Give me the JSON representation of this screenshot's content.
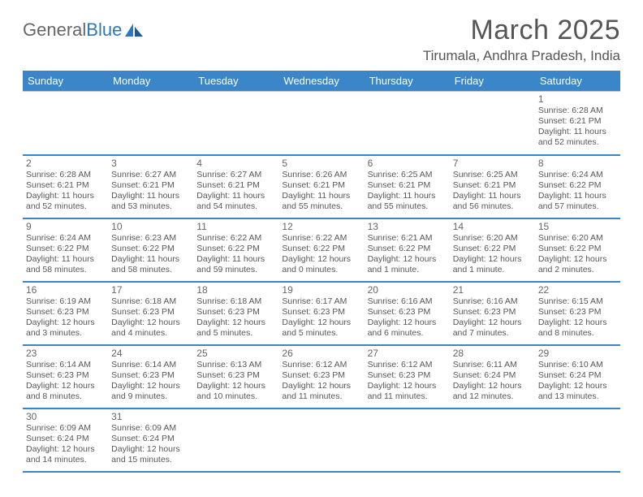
{
  "logo": {
    "text1": "General",
    "text2": "Blue"
  },
  "title": "March 2025",
  "location": "Tirumala, Andhra Pradesh, India",
  "colors": {
    "header_bg": "#3a86c8",
    "header_text": "#ffffff",
    "row_border": "#3a86c8",
    "cell_border": "#c9c9c9",
    "text": "#575757",
    "title_text": "#555555"
  },
  "weekdays": [
    "Sunday",
    "Monday",
    "Tuesday",
    "Wednesday",
    "Thursday",
    "Friday",
    "Saturday"
  ],
  "weeks": [
    [
      null,
      null,
      null,
      null,
      null,
      null,
      {
        "n": "1",
        "sr": "Sunrise: 6:28 AM",
        "ss": "Sunset: 6:21 PM",
        "d1": "Daylight: 11 hours",
        "d2": "and 52 minutes."
      }
    ],
    [
      {
        "n": "2",
        "sr": "Sunrise: 6:28 AM",
        "ss": "Sunset: 6:21 PM",
        "d1": "Daylight: 11 hours",
        "d2": "and 52 minutes."
      },
      {
        "n": "3",
        "sr": "Sunrise: 6:27 AM",
        "ss": "Sunset: 6:21 PM",
        "d1": "Daylight: 11 hours",
        "d2": "and 53 minutes."
      },
      {
        "n": "4",
        "sr": "Sunrise: 6:27 AM",
        "ss": "Sunset: 6:21 PM",
        "d1": "Daylight: 11 hours",
        "d2": "and 54 minutes."
      },
      {
        "n": "5",
        "sr": "Sunrise: 6:26 AM",
        "ss": "Sunset: 6:21 PM",
        "d1": "Daylight: 11 hours",
        "d2": "and 55 minutes."
      },
      {
        "n": "6",
        "sr": "Sunrise: 6:25 AM",
        "ss": "Sunset: 6:21 PM",
        "d1": "Daylight: 11 hours",
        "d2": "and 55 minutes."
      },
      {
        "n": "7",
        "sr": "Sunrise: 6:25 AM",
        "ss": "Sunset: 6:21 PM",
        "d1": "Daylight: 11 hours",
        "d2": "and 56 minutes."
      },
      {
        "n": "8",
        "sr": "Sunrise: 6:24 AM",
        "ss": "Sunset: 6:22 PM",
        "d1": "Daylight: 11 hours",
        "d2": "and 57 minutes."
      }
    ],
    [
      {
        "n": "9",
        "sr": "Sunrise: 6:24 AM",
        "ss": "Sunset: 6:22 PM",
        "d1": "Daylight: 11 hours",
        "d2": "and 58 minutes."
      },
      {
        "n": "10",
        "sr": "Sunrise: 6:23 AM",
        "ss": "Sunset: 6:22 PM",
        "d1": "Daylight: 11 hours",
        "d2": "and 58 minutes."
      },
      {
        "n": "11",
        "sr": "Sunrise: 6:22 AM",
        "ss": "Sunset: 6:22 PM",
        "d1": "Daylight: 11 hours",
        "d2": "and 59 minutes."
      },
      {
        "n": "12",
        "sr": "Sunrise: 6:22 AM",
        "ss": "Sunset: 6:22 PM",
        "d1": "Daylight: 12 hours",
        "d2": "and 0 minutes."
      },
      {
        "n": "13",
        "sr": "Sunrise: 6:21 AM",
        "ss": "Sunset: 6:22 PM",
        "d1": "Daylight: 12 hours",
        "d2": "and 1 minute."
      },
      {
        "n": "14",
        "sr": "Sunrise: 6:20 AM",
        "ss": "Sunset: 6:22 PM",
        "d1": "Daylight: 12 hours",
        "d2": "and 1 minute."
      },
      {
        "n": "15",
        "sr": "Sunrise: 6:20 AM",
        "ss": "Sunset: 6:22 PM",
        "d1": "Daylight: 12 hours",
        "d2": "and 2 minutes."
      }
    ],
    [
      {
        "n": "16",
        "sr": "Sunrise: 6:19 AM",
        "ss": "Sunset: 6:23 PM",
        "d1": "Daylight: 12 hours",
        "d2": "and 3 minutes."
      },
      {
        "n": "17",
        "sr": "Sunrise: 6:18 AM",
        "ss": "Sunset: 6:23 PM",
        "d1": "Daylight: 12 hours",
        "d2": "and 4 minutes."
      },
      {
        "n": "18",
        "sr": "Sunrise: 6:18 AM",
        "ss": "Sunset: 6:23 PM",
        "d1": "Daylight: 12 hours",
        "d2": "and 5 minutes."
      },
      {
        "n": "19",
        "sr": "Sunrise: 6:17 AM",
        "ss": "Sunset: 6:23 PM",
        "d1": "Daylight: 12 hours",
        "d2": "and 5 minutes."
      },
      {
        "n": "20",
        "sr": "Sunrise: 6:16 AM",
        "ss": "Sunset: 6:23 PM",
        "d1": "Daylight: 12 hours",
        "d2": "and 6 minutes."
      },
      {
        "n": "21",
        "sr": "Sunrise: 6:16 AM",
        "ss": "Sunset: 6:23 PM",
        "d1": "Daylight: 12 hours",
        "d2": "and 7 minutes."
      },
      {
        "n": "22",
        "sr": "Sunrise: 6:15 AM",
        "ss": "Sunset: 6:23 PM",
        "d1": "Daylight: 12 hours",
        "d2": "and 8 minutes."
      }
    ],
    [
      {
        "n": "23",
        "sr": "Sunrise: 6:14 AM",
        "ss": "Sunset: 6:23 PM",
        "d1": "Daylight: 12 hours",
        "d2": "and 8 minutes."
      },
      {
        "n": "24",
        "sr": "Sunrise: 6:14 AM",
        "ss": "Sunset: 6:23 PM",
        "d1": "Daylight: 12 hours",
        "d2": "and 9 minutes."
      },
      {
        "n": "25",
        "sr": "Sunrise: 6:13 AM",
        "ss": "Sunset: 6:23 PM",
        "d1": "Daylight: 12 hours",
        "d2": "and 10 minutes."
      },
      {
        "n": "26",
        "sr": "Sunrise: 6:12 AM",
        "ss": "Sunset: 6:23 PM",
        "d1": "Daylight: 12 hours",
        "d2": "and 11 minutes."
      },
      {
        "n": "27",
        "sr": "Sunrise: 6:12 AM",
        "ss": "Sunset: 6:23 PM",
        "d1": "Daylight: 12 hours",
        "d2": "and 11 minutes."
      },
      {
        "n": "28",
        "sr": "Sunrise: 6:11 AM",
        "ss": "Sunset: 6:24 PM",
        "d1": "Daylight: 12 hours",
        "d2": "and 12 minutes."
      },
      {
        "n": "29",
        "sr": "Sunrise: 6:10 AM",
        "ss": "Sunset: 6:24 PM",
        "d1": "Daylight: 12 hours",
        "d2": "and 13 minutes."
      }
    ],
    [
      {
        "n": "30",
        "sr": "Sunrise: 6:09 AM",
        "ss": "Sunset: 6:24 PM",
        "d1": "Daylight: 12 hours",
        "d2": "and 14 minutes."
      },
      {
        "n": "31",
        "sr": "Sunrise: 6:09 AM",
        "ss": "Sunset: 6:24 PM",
        "d1": "Daylight: 12 hours",
        "d2": "and 15 minutes."
      },
      null,
      null,
      null,
      null,
      null
    ]
  ]
}
